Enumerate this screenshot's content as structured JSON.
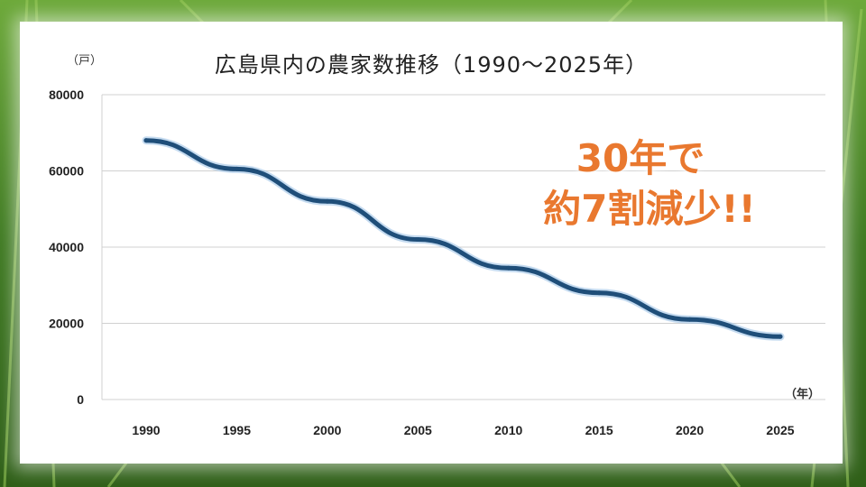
{
  "chart_data": {
    "type": "line",
    "title": "広島県内の農家数推移（1990～2025年）",
    "y_unit": "（戸）",
    "x_unit": "（年）",
    "x": [
      "1990",
      "1995",
      "2000",
      "2005",
      "2010",
      "2015",
      "2020",
      "2025"
    ],
    "series": [
      {
        "values": [
          68000,
          60500,
          52000,
          42000,
          34500,
          28000,
          21000,
          16500
        ]
      }
    ],
    "ylim": [
      0,
      80000
    ],
    "yticks": [
      0,
      20000,
      40000,
      60000,
      80000
    ],
    "grid": true,
    "line_color": "#1f4e79",
    "annotation": [
      "30年で",
      "約7割減少!!"
    ],
    "annotation_color": "#e9782f"
  }
}
